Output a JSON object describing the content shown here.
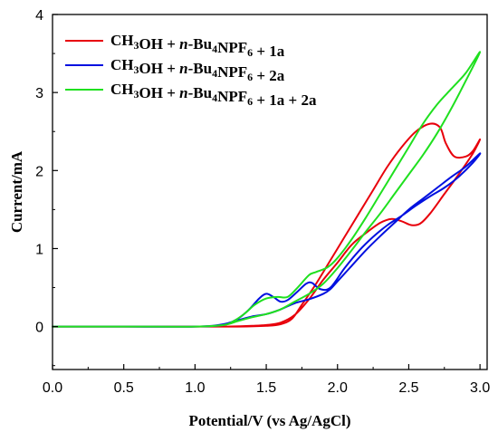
{
  "chart_data": {
    "type": "line",
    "title": "",
    "xlabel": "Potential/V (vs Ag/AgCl)",
    "ylabel": "Current/mA",
    "xlim": [
      0.0,
      3.05
    ],
    "ylim": [
      -0.55,
      4.0
    ],
    "x_ticks": [
      0.0,
      0.5,
      1.0,
      1.5,
      2.0,
      2.5,
      3.0
    ],
    "x_tick_labels": [
      "0.0",
      "0.5",
      "1.0",
      "1.5",
      "2.0",
      "2.5",
      "3.0"
    ],
    "y_ticks": [
      0,
      1,
      2,
      3,
      4
    ],
    "y_tick_labels": [
      "0",
      "1",
      "2",
      "3",
      "4"
    ],
    "grid": false,
    "legend_position": "top-left",
    "series": [
      {
        "name": "CH3OH + n-Bu4NPF6 + 1a",
        "name_parts": {
          "a": "CH",
          "a_sub": "3",
          "b": "OH + ",
          "c": "n",
          "d": "-Bu",
          "d_sub": "4",
          "e": "NPF",
          "e_sub": "6",
          "f": " + 1a"
        },
        "color": "#e8000b",
        "points": [
          [
            0.0,
            0.0
          ],
          [
            0.5,
            0.0
          ],
          [
            1.0,
            0.0
          ],
          [
            1.2,
            0.0
          ],
          [
            1.4,
            0.01
          ],
          [
            1.5,
            0.02
          ],
          [
            1.6,
            0.05
          ],
          [
            1.7,
            0.15
          ],
          [
            1.8,
            0.35
          ],
          [
            1.9,
            0.6
          ],
          [
            2.0,
            0.82
          ],
          [
            2.1,
            1.05
          ],
          [
            2.2,
            1.2
          ],
          [
            2.3,
            1.33
          ],
          [
            2.38,
            1.38
          ],
          [
            2.45,
            1.35
          ],
          [
            2.52,
            1.3
          ],
          [
            2.58,
            1.32
          ],
          [
            2.65,
            1.45
          ],
          [
            2.75,
            1.7
          ],
          [
            2.85,
            1.95
          ],
          [
            2.95,
            2.22
          ],
          [
            3.0,
            2.4
          ],
          [
            2.95,
            2.25
          ],
          [
            2.9,
            2.18
          ],
          [
            2.82,
            2.18
          ],
          [
            2.76,
            2.35
          ],
          [
            2.72,
            2.55
          ],
          [
            2.65,
            2.6
          ],
          [
            2.55,
            2.5
          ],
          [
            2.45,
            2.3
          ],
          [
            2.35,
            2.05
          ],
          [
            2.25,
            1.75
          ],
          [
            2.15,
            1.45
          ],
          [
            2.05,
            1.15
          ],
          [
            1.95,
            0.85
          ],
          [
            1.85,
            0.55
          ],
          [
            1.75,
            0.28
          ],
          [
            1.68,
            0.1
          ],
          [
            1.6,
            0.03
          ],
          [
            1.5,
            0.01
          ],
          [
            1.3,
            0.0
          ],
          [
            1.0,
            0.0
          ],
          [
            0.5,
            0.0
          ],
          [
            0.0,
            0.0
          ]
        ]
      },
      {
        "name": "CH3OH + n-Bu4NPF6 + 2a",
        "name_parts": {
          "a": "CH",
          "a_sub": "3",
          "b": "OH + ",
          "c": "n",
          "d": "-Bu",
          "d_sub": "4",
          "e": "NPF",
          "e_sub": "6",
          "f": " + 2a"
        },
        "color": "#0010e0",
        "points": [
          [
            0.0,
            0.0
          ],
          [
            0.5,
            0.0
          ],
          [
            1.0,
            0.0
          ],
          [
            1.2,
            0.02
          ],
          [
            1.3,
            0.08
          ],
          [
            1.4,
            0.13
          ],
          [
            1.5,
            0.16
          ],
          [
            1.6,
            0.22
          ],
          [
            1.7,
            0.3
          ],
          [
            1.8,
            0.35
          ],
          [
            1.9,
            0.42
          ],
          [
            1.95,
            0.48
          ],
          [
            2.0,
            0.58
          ],
          [
            2.1,
            0.78
          ],
          [
            2.2,
            0.98
          ],
          [
            2.3,
            1.16
          ],
          [
            2.4,
            1.33
          ],
          [
            2.5,
            1.5
          ],
          [
            2.6,
            1.64
          ],
          [
            2.7,
            1.78
          ],
          [
            2.8,
            1.92
          ],
          [
            2.9,
            2.05
          ],
          [
            3.0,
            2.22
          ],
          [
            2.95,
            2.1
          ],
          [
            2.85,
            1.92
          ],
          [
            2.75,
            1.78
          ],
          [
            2.65,
            1.67
          ],
          [
            2.55,
            1.55
          ],
          [
            2.45,
            1.42
          ],
          [
            2.35,
            1.3
          ],
          [
            2.25,
            1.15
          ],
          [
            2.15,
            0.97
          ],
          [
            2.05,
            0.75
          ],
          [
            1.95,
            0.5
          ],
          [
            1.88,
            0.48
          ],
          [
            1.82,
            0.56
          ],
          [
            1.78,
            0.55
          ],
          [
            1.72,
            0.45
          ],
          [
            1.65,
            0.34
          ],
          [
            1.6,
            0.32
          ],
          [
            1.55,
            0.38
          ],
          [
            1.5,
            0.42
          ],
          [
            1.45,
            0.36
          ],
          [
            1.38,
            0.22
          ],
          [
            1.3,
            0.1
          ],
          [
            1.2,
            0.03
          ],
          [
            1.0,
            0.0
          ],
          [
            0.5,
            0.0
          ],
          [
            0.0,
            0.0
          ]
        ]
      },
      {
        "name": "CH3OH + n-Bu4NPF6 + 1a + 2a",
        "name_parts": {
          "a": "CH",
          "a_sub": "3",
          "b": "OH + ",
          "c": "n",
          "d": "-Bu",
          "d_sub": "4",
          "e": "NPF",
          "e_sub": "6",
          "f": " + 1a + 2a"
        },
        "color": "#1fe01f",
        "points": [
          [
            0.0,
            0.0
          ],
          [
            0.5,
            0.0
          ],
          [
            1.0,
            0.0
          ],
          [
            1.2,
            0.02
          ],
          [
            1.3,
            0.07
          ],
          [
            1.4,
            0.12
          ],
          [
            1.5,
            0.16
          ],
          [
            1.6,
            0.22
          ],
          [
            1.7,
            0.32
          ],
          [
            1.8,
            0.42
          ],
          [
            1.9,
            0.55
          ],
          [
            2.0,
            0.75
          ],
          [
            2.1,
            0.98
          ],
          [
            2.2,
            1.22
          ],
          [
            2.3,
            1.45
          ],
          [
            2.4,
            1.7
          ],
          [
            2.5,
            1.95
          ],
          [
            2.6,
            2.2
          ],
          [
            2.7,
            2.48
          ],
          [
            2.8,
            2.8
          ],
          [
            2.9,
            3.15
          ],
          [
            3.0,
            3.52
          ],
          [
            2.9,
            3.25
          ],
          [
            2.8,
            3.05
          ],
          [
            2.7,
            2.85
          ],
          [
            2.6,
            2.6
          ],
          [
            2.5,
            2.3
          ],
          [
            2.4,
            2.0
          ],
          [
            2.3,
            1.7
          ],
          [
            2.2,
            1.4
          ],
          [
            2.1,
            1.12
          ],
          [
            2.0,
            0.88
          ],
          [
            1.93,
            0.76
          ],
          [
            1.85,
            0.7
          ],
          [
            1.8,
            0.66
          ],
          [
            1.72,
            0.5
          ],
          [
            1.65,
            0.38
          ],
          [
            1.58,
            0.38
          ],
          [
            1.5,
            0.36
          ],
          [
            1.42,
            0.28
          ],
          [
            1.35,
            0.17
          ],
          [
            1.28,
            0.08
          ],
          [
            1.2,
            0.02
          ],
          [
            1.0,
            0.0
          ],
          [
            0.5,
            0.0
          ],
          [
            0.0,
            0.0
          ]
        ]
      }
    ]
  }
}
